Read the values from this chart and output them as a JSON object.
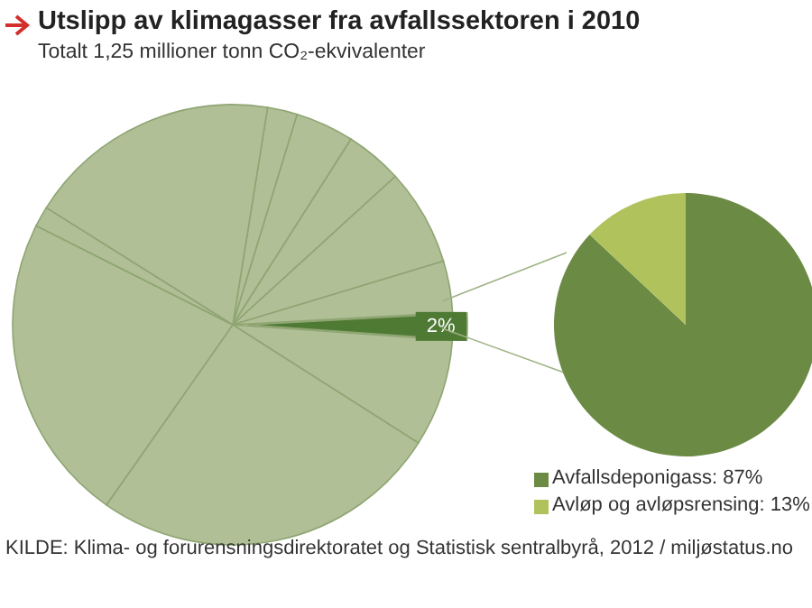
{
  "chart_data": [
    {
      "type": "pie",
      "title": "Utslipp av klimagasser fra avfallssektoren i 2010",
      "subtitle": "Totalt 1,25 millioner tonn CO₂-ekvivalenter",
      "annotations": [
        "KILDE: Klima- og forurensningsdirektoratet og Statistisk sentralbyrå, 2012 / miljøstatus.no"
      ],
      "categories": [
        null,
        null,
        null,
        null,
        null,
        null,
        null,
        null,
        null,
        null,
        null
      ],
      "values": [
        2.2,
        4.3,
        4.2,
        7.1,
        3.8,
        2,
        7.9,
        25.7,
        22.7,
        1.5,
        18.6
      ],
      "colors": [
        "#b0bf96",
        "#b0bf96",
        "#b0bf96",
        "#b0bf96",
        "#b0bf96",
        "#4e7a34",
        "#b0bf96",
        "#b0bf96",
        "#b0bf96",
        "#b0bf96",
        "#b0bf96"
      ],
      "value_labels": [
        null,
        null,
        null,
        null,
        null,
        "2%",
        null,
        null,
        null,
        null,
        null
      ]
    },
    {
      "type": "pie",
      "categories": [
        "Avfallsdeponigass: 87%",
        "Avløp og avløpsrensing: 13%"
      ],
      "values": [
        87,
        13
      ],
      "colors": [
        "#6b8a44",
        "#b0c25c"
      ],
      "legend": "bottom"
    }
  ]
}
